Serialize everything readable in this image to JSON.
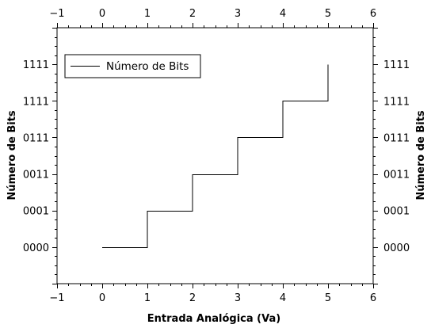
{
  "chart_data": {
    "type": "line",
    "step": "post",
    "xlabel": "Entrada Analógica (Va)",
    "ylabel": "Número de Bits",
    "ylabel_right": "Número de Bits",
    "xlim": [
      -1,
      6
    ],
    "ylim": [
      -1,
      6
    ],
    "x_ticks": [
      "-1",
      "0",
      "1",
      "2",
      "3",
      "4",
      "5",
      "6"
    ],
    "y_ticks": [
      {
        "value": 0,
        "label": "0000"
      },
      {
        "value": 1,
        "label": "0001"
      },
      {
        "value": 2,
        "label": "0011"
      },
      {
        "value": 3,
        "label": "0111"
      },
      {
        "value": 4,
        "label": "1111"
      },
      {
        "value": 5,
        "label": "1111"
      }
    ],
    "series": [
      {
        "name": "Número de Bits",
        "color": "#000000",
        "points": [
          [
            0,
            0
          ],
          [
            1,
            0
          ],
          [
            1,
            1
          ],
          [
            2,
            1
          ],
          [
            2,
            2
          ],
          [
            3,
            2
          ],
          [
            3,
            3
          ],
          [
            4,
            3
          ],
          [
            4,
            4
          ],
          [
            5,
            4
          ],
          [
            5,
            5
          ]
        ]
      }
    ],
    "legend": {
      "position": "top-left",
      "entries": [
        "Número de Bits"
      ]
    },
    "grid": false,
    "mirror_axes": true
  }
}
